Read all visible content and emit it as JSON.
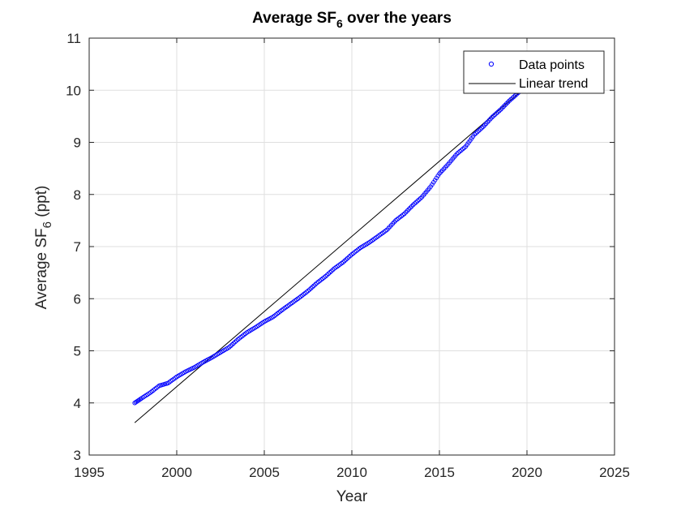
{
  "chart_data": {
    "type": "scatter",
    "title": "Average SF",
    "title_subscript": "6",
    "title_suffix": " over the years",
    "xlabel": "Year",
    "ylabel": "Average SF",
    "ylabel_subscript": "6",
    "ylabel_suffix": " (ppt)",
    "xlim": [
      1995,
      2025
    ],
    "ylim": [
      3,
      11
    ],
    "xticks": [
      "1995",
      "2000",
      "2005",
      "2010",
      "2015",
      "2020",
      "2025"
    ],
    "yticks": [
      "3",
      "4",
      "5",
      "6",
      "7",
      "8",
      "9",
      "10",
      "11"
    ],
    "grid": true,
    "legend_position": "top-right",
    "series": [
      {
        "name": "Data points",
        "style": "circle-marker",
        "color": "#0000ff",
        "points": [
          [
            1997.6,
            4.0
          ],
          [
            1998.0,
            4.09
          ],
          [
            1998.5,
            4.2
          ],
          [
            1999.0,
            4.33
          ],
          [
            1999.5,
            4.38
          ],
          [
            2000.0,
            4.5
          ],
          [
            2000.5,
            4.6
          ],
          [
            2001.0,
            4.68
          ],
          [
            2001.5,
            4.78
          ],
          [
            2002.0,
            4.87
          ],
          [
            2002.5,
            4.97
          ],
          [
            2003.0,
            5.07
          ],
          [
            2003.5,
            5.22
          ],
          [
            2004.0,
            5.35
          ],
          [
            2004.5,
            5.45
          ],
          [
            2005.0,
            5.56
          ],
          [
            2005.5,
            5.65
          ],
          [
            2006.0,
            5.78
          ],
          [
            2006.5,
            5.9
          ],
          [
            2007.0,
            6.02
          ],
          [
            2007.5,
            6.15
          ],
          [
            2008.0,
            6.3
          ],
          [
            2008.5,
            6.43
          ],
          [
            2009.0,
            6.58
          ],
          [
            2009.5,
            6.7
          ],
          [
            2010.0,
            6.85
          ],
          [
            2010.5,
            6.98
          ],
          [
            2011.0,
            7.08
          ],
          [
            2011.5,
            7.2
          ],
          [
            2012.0,
            7.32
          ],
          [
            2012.5,
            7.5
          ],
          [
            2013.0,
            7.63
          ],
          [
            2013.5,
            7.8
          ],
          [
            2014.0,
            7.95
          ],
          [
            2014.5,
            8.15
          ],
          [
            2015.0,
            8.4
          ],
          [
            2015.5,
            8.58
          ],
          [
            2016.0,
            8.78
          ],
          [
            2016.5,
            8.92
          ],
          [
            2017.0,
            9.15
          ],
          [
            2017.5,
            9.3
          ],
          [
            2018.0,
            9.48
          ],
          [
            2018.5,
            9.63
          ],
          [
            2019.0,
            9.8
          ],
          [
            2019.5,
            9.95
          ],
          [
            2020.0,
            10.08
          ]
        ]
      },
      {
        "name": "Linear trend",
        "style": "line",
        "color": "#000000",
        "x": [
          1997.6,
          2020.0
        ],
        "y": [
          3.62,
          10.08
        ]
      }
    ]
  }
}
